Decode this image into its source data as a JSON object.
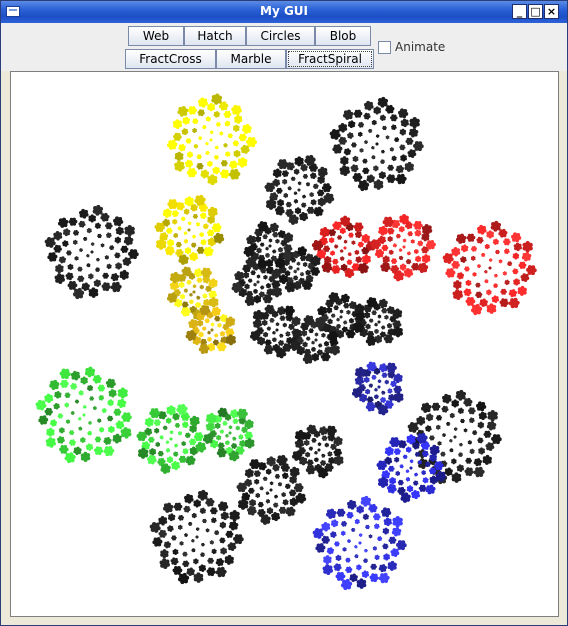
{
  "window": {
    "title": "My GUI"
  },
  "buttons": {
    "row1": [
      "Web",
      "Hatch",
      "Circles",
      "Blob"
    ],
    "row2": [
      "FractCross",
      "Marble",
      "FractSpiral"
    ]
  },
  "animate_label": "Animate",
  "colors": {
    "titlebar": "#2a5fd6",
    "canvas_bg": "#ffffff"
  },
  "canvas": {
    "kind": "fractal-spiral drawing",
    "clusters": [
      {
        "color": "#d8d400",
        "variant": "yellow"
      },
      {
        "color": "#1a1a1a",
        "variant": "black"
      },
      {
        "color": "#1a1a1a",
        "variant": "black"
      },
      {
        "color": "#1a1a1a",
        "variant": "black"
      },
      {
        "color": "#c8b800",
        "variant": "olive-yellow"
      },
      {
        "color": "#1a1a1a",
        "variant": "black"
      },
      {
        "color": "#b01818",
        "variant": "red"
      },
      {
        "color": "#c82020",
        "variant": "red"
      },
      {
        "color": "#d02020",
        "variant": "bright-red"
      },
      {
        "color": "#b8a010",
        "variant": "olive"
      },
      {
        "color": "#1a1a1a",
        "variant": "black"
      },
      {
        "color": "#1a1a1a",
        "variant": "black"
      },
      {
        "color": "#b09010",
        "variant": "olive"
      },
      {
        "color": "#1a1a1a",
        "variant": "black"
      },
      {
        "color": "#1a1a1a",
        "variant": "black"
      },
      {
        "color": "#1a1a1a",
        "variant": "black"
      },
      {
        "color": "#1a1a1a",
        "variant": "black"
      },
      {
        "color": "#202080",
        "variant": "dark-blue"
      },
      {
        "color": "#30b030",
        "variant": "green"
      },
      {
        "color": "#30b030",
        "variant": "green"
      },
      {
        "color": "#30a030",
        "variant": "green"
      },
      {
        "color": "#1a1a1a",
        "variant": "black"
      },
      {
        "color": "#1a1a1a",
        "variant": "black"
      },
      {
        "color": "#2020a0",
        "variant": "blue"
      },
      {
        "color": "#1a1a1a",
        "variant": "black"
      },
      {
        "color": "#1a1a1a",
        "variant": "black"
      },
      {
        "color": "#2828b0",
        "variant": "blue"
      }
    ]
  }
}
